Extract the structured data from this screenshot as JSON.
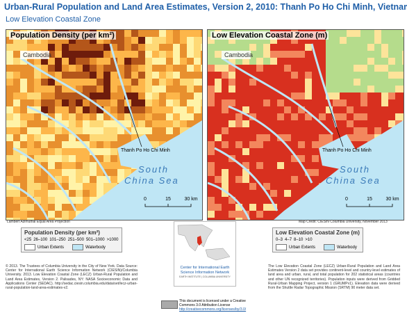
{
  "header": {
    "title": "Urban-Rural Population and Land Area Estimates, Version 2, 2010: Thanh Po Ho Chi Minh, Vietnam",
    "subtitle": "Low Elevation Coastal Zone"
  },
  "maps": [
    {
      "title": "Population Density (per km²)",
      "country_label": "Cambodia",
      "city_label": "Thanh Po Ho Chi Minh",
      "sea_label": [
        "South",
        "China Sea"
      ],
      "scale": [
        "0",
        "15",
        "30 km"
      ],
      "note": "Lambert Azimuthal Equal Area Projection"
    },
    {
      "title": "Low Elevation Coastal Zone (m)",
      "country_label": "Cambodia",
      "city_label": "Thanh Po Ho Chi Minh",
      "sea_label": [
        "South",
        "China Sea"
      ],
      "scale": [
        "0",
        "15",
        "30 km"
      ],
      "note": "Map Credit: CIESIN Columbia University, November 2013"
    }
  ],
  "legends": [
    {
      "title": "Population Density (per km²)",
      "classes": [
        {
          "label": "<25",
          "color": "#fff3a8"
        },
        {
          "label": "26–100",
          "color": "#fed976"
        },
        {
          "label": "101–250",
          "color": "#fdb64a"
        },
        {
          "label": "251–500",
          "color": "#e8902e"
        },
        {
          "label": "501–1000",
          "color": "#b4561a"
        },
        {
          "label": ">1000",
          "color": "#6e1c0c"
        }
      ],
      "extras": [
        "Urban Extents",
        "Waterbody"
      ]
    },
    {
      "title": "Low Elevation Coastal Zone (m)",
      "classes": [
        {
          "label": "0–3",
          "color": "#d8301f"
        },
        {
          "label": "4–7",
          "color": "#f3875d"
        },
        {
          "label": "8–10",
          "color": "#fde49a"
        },
        {
          "label": ">10",
          "color": "#b5dc8c"
        }
      ],
      "extras": [
        "Urban Extents",
        "Waterbody"
      ]
    }
  ],
  "logo": {
    "name": "Center for International Earth Science Information Network",
    "affiliation": "EARTH INSTITUTE | COLUMBIA UNIVERSITY"
  },
  "footer": {
    "left": "© 2013. The Trustees of Columbia University in the City of New York. Data Source: Center for International Earth Science Information Network (CIESIN)/Columbia University. 2013. Low Elevation Coastal Zone (LECZ) Urban-Rural Population and Land Area Estimates, Version 2. Palisades, NY: NASA Socioeconomic Data and Applications Center (SEDAC). http://sedac.ciesin.columbia.edu/data/set/lecz-urban-rural-population-land-area-estimates-v2.",
    "right": "The Low Elevation Coastal Zone (LECZ) Urban-Rural Population and Land Area Estimates Version 2 data set provides continent-level and country-level estimates of land area and urban, rural, and total population for 202 statistical areas (countries and other UN recognized territories). Population inputs were derived from Gridded Rural-Urban Mapping Project, version 1 (GRUMPv1). Elevation data were derived from the Shuttle Radar Topographic Mission (SRTM) 90 meter data set.",
    "license": "This document is licensed under a Creative Commons 3.0 Attribution License",
    "license_url": "http://creativecommons.org/licenses/by/3.0/"
  }
}
